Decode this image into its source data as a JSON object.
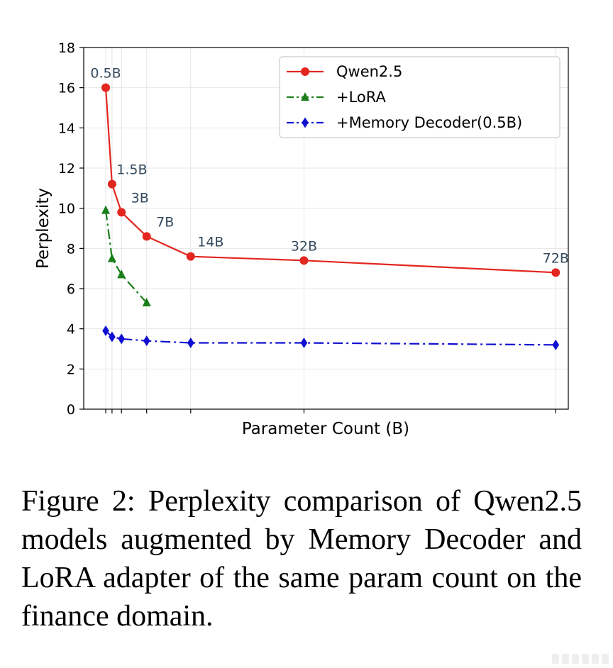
{
  "chart_data": {
    "type": "line",
    "xlabel": "Parameter Count (B)",
    "ylabel": "Perplexity",
    "ylim": [
      0,
      18
    ],
    "yticks": [
      0,
      2,
      4,
      6,
      8,
      10,
      12,
      14,
      16,
      18
    ],
    "grid": true,
    "legend_position": "top-right",
    "x": [
      0.5,
      1.5,
      3,
      7,
      14,
      32,
      72
    ],
    "point_labels": [
      "0.5B",
      "1.5B",
      "3B",
      "7B",
      "14B",
      "32B",
      "72B"
    ],
    "series": [
      {
        "name": "Qwen2.5",
        "color": "#e3261f",
        "marker": "circle",
        "linestyle": "solid",
        "x": [
          0.5,
          1.5,
          3,
          7,
          14,
          32,
          72
        ],
        "values": [
          16.0,
          11.2,
          9.8,
          8.6,
          7.6,
          7.4,
          6.8
        ]
      },
      {
        "name": "+LoRA",
        "color": "#1a7f1a",
        "marker": "triangle",
        "linestyle": "dashdot",
        "x": [
          0.5,
          1.5,
          3,
          7
        ],
        "values": [
          9.9,
          7.5,
          6.7,
          5.3
        ]
      },
      {
        "name": "+Memory Decoder(0.5B)",
        "color": "#1010d0",
        "marker": "diamond",
        "linestyle": "dashdot",
        "x": [
          0.5,
          1.5,
          3,
          7,
          14,
          32,
          72
        ],
        "values": [
          3.9,
          3.6,
          3.5,
          3.4,
          3.3,
          3.3,
          3.2
        ]
      }
    ]
  },
  "caption": "Figure 2:  Perplexity comparison of Qwen2.5 models augmented by Memory Decoder and LoRA adapter of the same param count on the finance domain."
}
